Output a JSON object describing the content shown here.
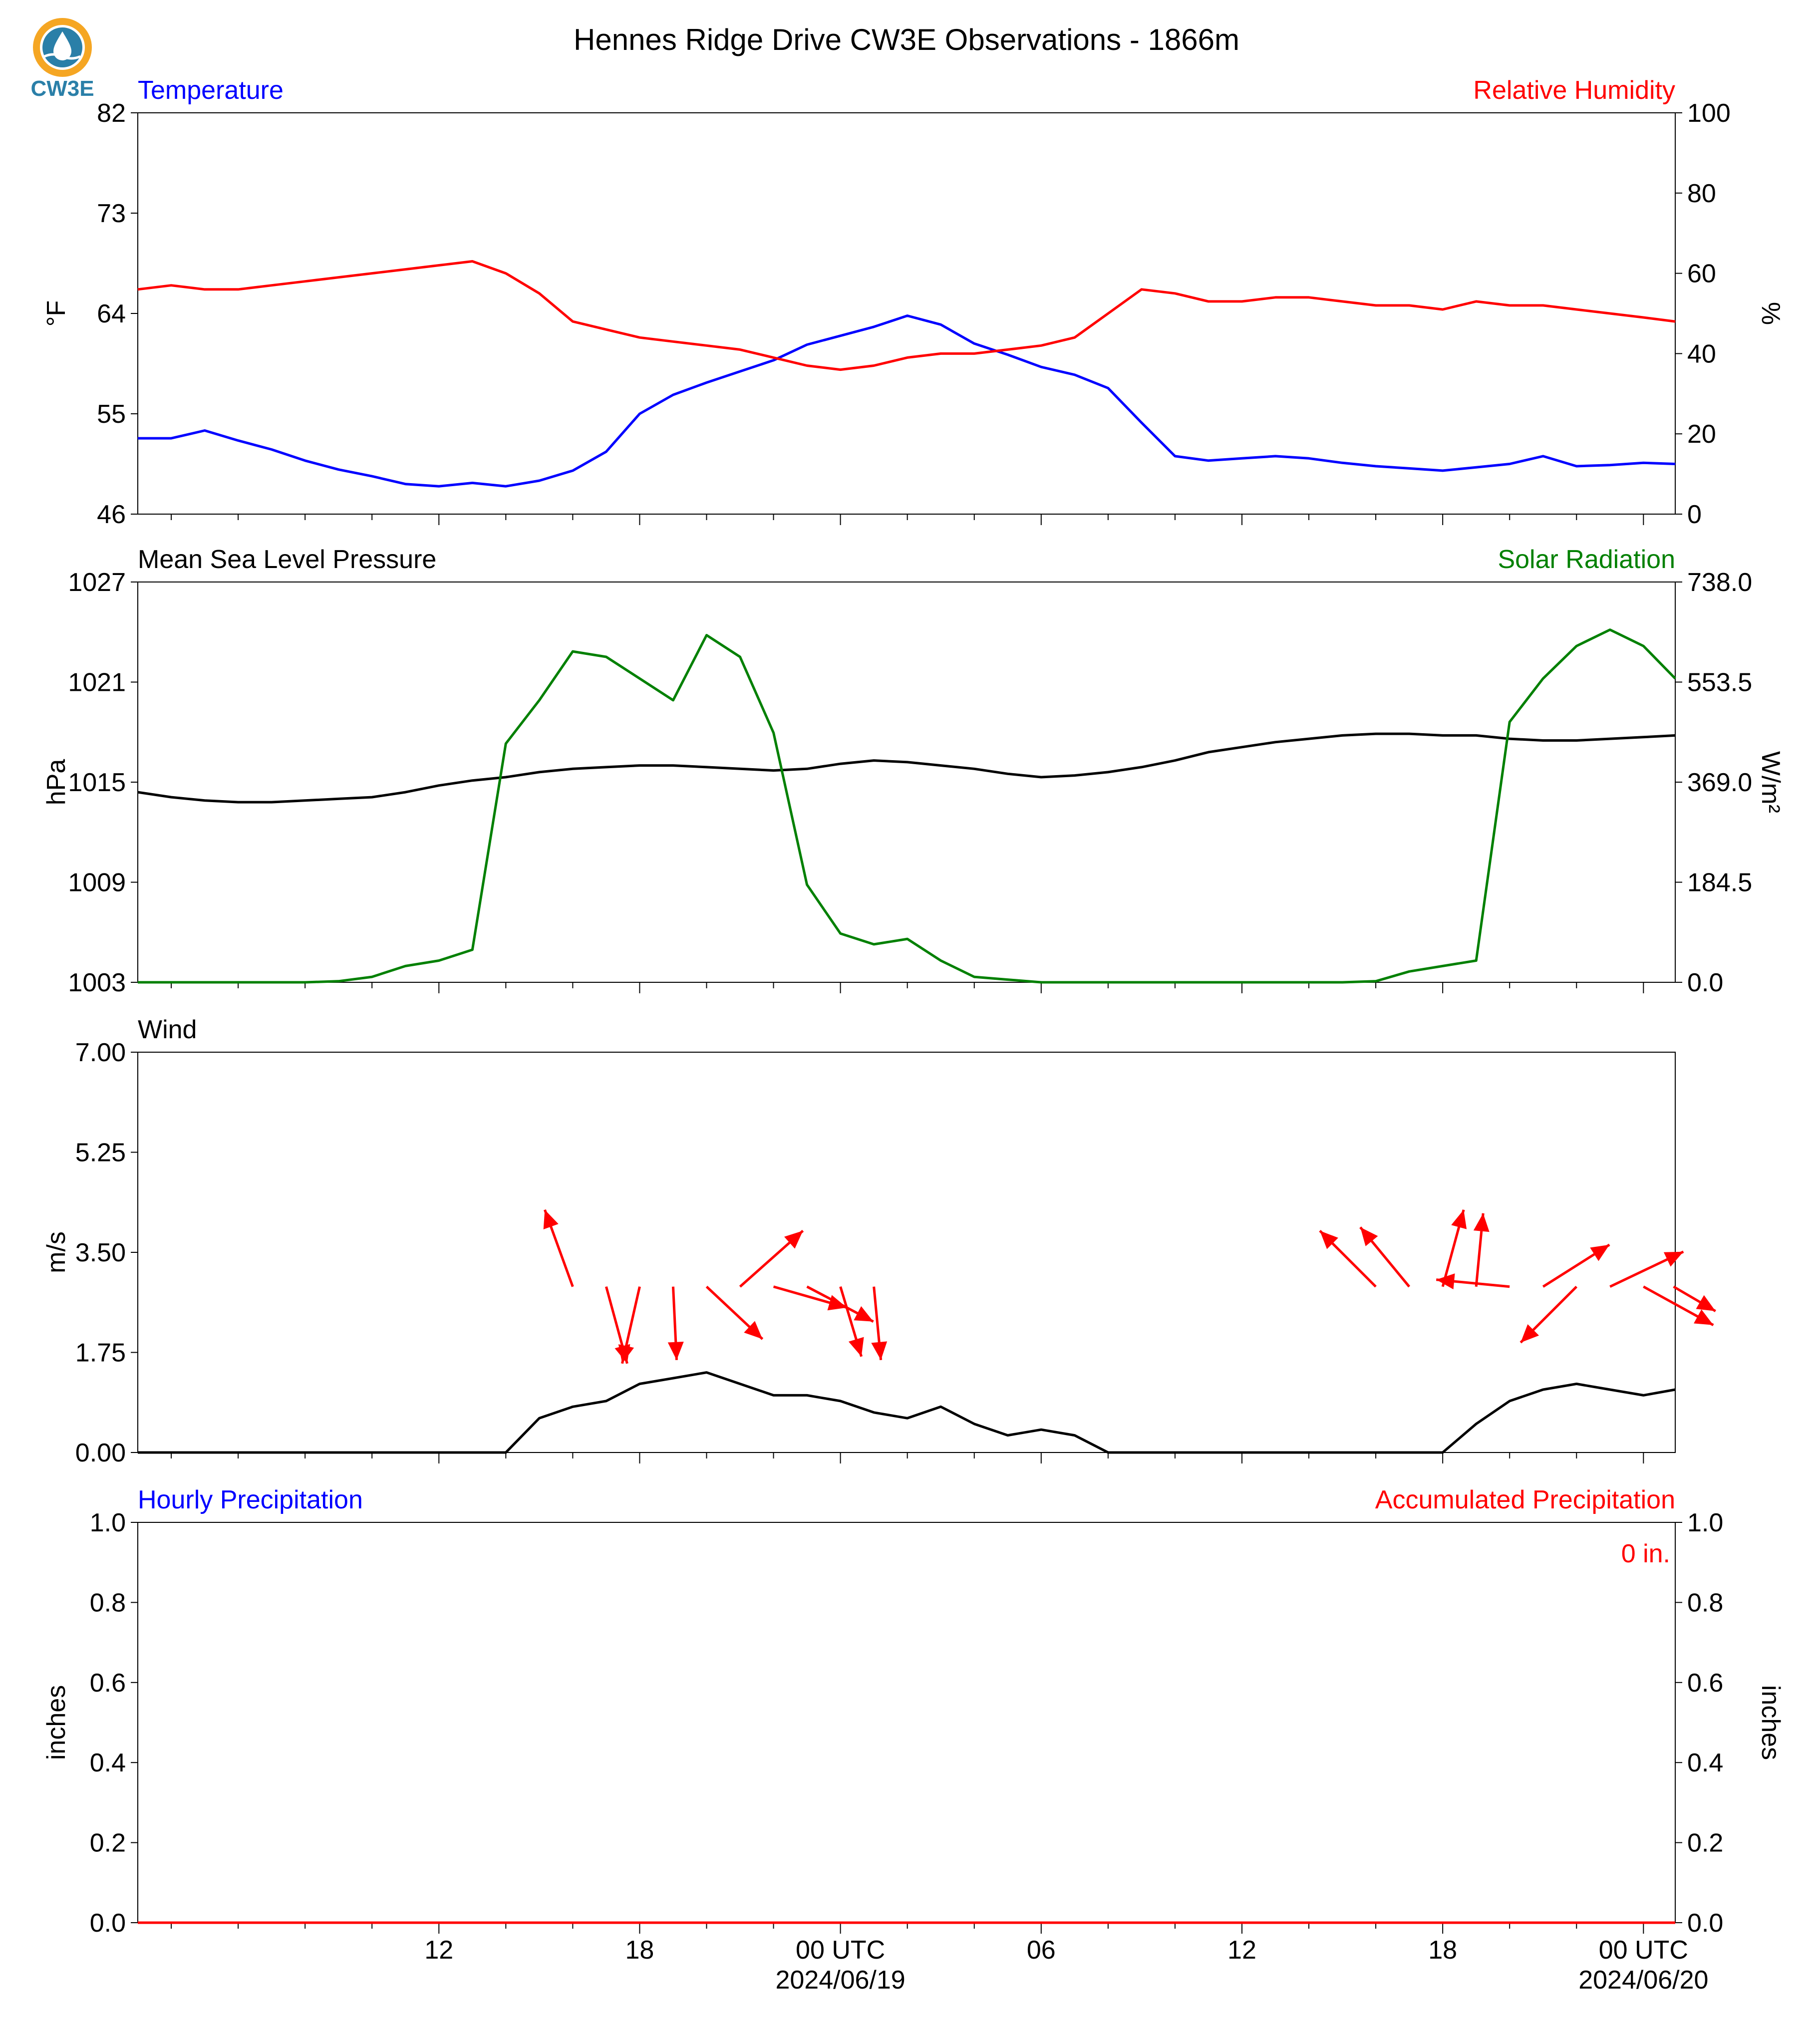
{
  "header": {
    "title": "Hennes Ridge Drive CW3E Observations - 1866m",
    "logo_text": "CW3E"
  },
  "chart_data": [
    {
      "type": "line",
      "left_label": "Temperature",
      "right_label": "Relative Humidity",
      "ylabel_left": "°F",
      "ylabel_right": "%",
      "ylim_left": [
        46,
        82
      ],
      "ylim_right": [
        0,
        100
      ],
      "yticks_left": [
        "46",
        "55",
        "64",
        "73",
        "82"
      ],
      "yticks_right": [
        "0",
        "20",
        "40",
        "60",
        "80",
        "100"
      ],
      "x_hours": [
        3.0,
        4.0,
        5.0,
        6.0,
        7.0,
        8.0,
        9.0,
        10.0,
        11.0,
        12.0,
        13.0,
        14.0,
        15.0,
        16.0,
        17.0,
        18.0,
        19.0,
        20.0,
        21.0,
        22.0,
        23.0,
        24.0,
        25.0,
        26.0,
        27.0,
        28.0,
        29.0,
        30.0,
        31.0,
        32.0,
        33.0,
        34.0,
        35.0,
        36.0,
        37.0,
        38.0,
        39.0,
        40.0,
        41.0,
        42.0,
        43.0,
        44.0,
        45.0,
        46.0,
        47.0,
        48.0,
        48.95
      ],
      "series": [
        {
          "name": "Temperature",
          "axis": "left",
          "color": "#0000ff",
          "values": [
            52.8,
            52.8,
            53.5,
            52.6,
            51.8,
            50.8,
            50.0,
            49.4,
            48.7,
            48.5,
            48.8,
            48.5,
            49.0,
            49.9,
            51.6,
            55.0,
            56.7,
            57.8,
            58.8,
            59.8,
            61.2,
            62.0,
            62.8,
            63.8,
            63.0,
            61.3,
            60.3,
            59.2,
            58.5,
            57.3,
            54.2,
            51.2,
            50.8,
            51.0,
            51.2,
            51.0,
            50.6,
            50.3,
            50.1,
            49.9,
            50.2,
            50.5,
            51.2,
            50.3,
            50.4,
            50.6,
            50.5
          ]
        },
        {
          "name": "Relative Humidity",
          "axis": "right",
          "color": "#ff0000",
          "values": [
            56,
            57,
            56,
            56,
            57,
            58,
            59,
            60,
            61,
            62,
            63,
            60,
            55,
            48,
            46,
            44,
            43,
            42,
            41,
            39,
            37,
            36,
            37,
            39,
            40,
            40,
            41,
            42,
            44,
            50,
            56,
            55,
            53,
            53,
            54,
            54,
            53,
            52,
            52,
            51,
            53,
            52,
            52,
            51,
            50,
            49,
            48
          ]
        }
      ]
    },
    {
      "type": "line",
      "left_label": "Mean Sea Level Pressure",
      "right_label": "Solar Radiation",
      "ylabel_left": "hPa",
      "ylabel_right": "W/m²",
      "ylim_left": [
        1003,
        1027
      ],
      "ylim_right": [
        0,
        738
      ],
      "yticks_left": [
        "1003",
        "1009",
        "1015",
        "1021",
        "1027"
      ],
      "yticks_right": [
        "0.0",
        "184.5",
        "369.0",
        "553.5",
        "738.0"
      ],
      "x_hours": [
        3.0,
        4.0,
        5.0,
        6.0,
        7.0,
        8.0,
        9.0,
        10.0,
        11.0,
        12.0,
        13.0,
        14.0,
        15.0,
        16.0,
        17.0,
        18.0,
        19.0,
        20.0,
        21.0,
        22.0,
        23.0,
        24.0,
        25.0,
        26.0,
        27.0,
        28.0,
        29.0,
        30.0,
        31.0,
        32.0,
        33.0,
        34.0,
        35.0,
        36.0,
        37.0,
        38.0,
        39.0,
        40.0,
        41.0,
        42.0,
        43.0,
        44.0,
        45.0,
        46.0,
        47.0,
        48.0,
        48.95
      ],
      "series": [
        {
          "name": "Mean Sea Level Pressure",
          "axis": "left",
          "color": "#000000",
          "values": [
            1014.4,
            1014.1,
            1013.9,
            1013.8,
            1013.8,
            1013.9,
            1014.0,
            1014.1,
            1014.4,
            1014.8,
            1015.1,
            1015.3,
            1015.6,
            1015.8,
            1015.9,
            1016.0,
            1016.0,
            1015.9,
            1015.8,
            1015.7,
            1015.8,
            1016.1,
            1016.3,
            1016.2,
            1016.0,
            1015.8,
            1015.5,
            1015.3,
            1015.4,
            1015.6,
            1015.9,
            1016.3,
            1016.8,
            1017.1,
            1017.4,
            1017.6,
            1017.8,
            1017.9,
            1017.9,
            1017.8,
            1017.8,
            1017.6,
            1017.5,
            1017.5,
            1017.6,
            1017.7,
            1017.8
          ]
        },
        {
          "name": "Solar Radiation",
          "axis": "right",
          "color": "#008000",
          "values": [
            0,
            0,
            0,
            0,
            0,
            0,
            2,
            10,
            30,
            40,
            60,
            440,
            520,
            610,
            600,
            560,
            520,
            640,
            600,
            460,
            180,
            90,
            70,
            80,
            40,
            10,
            5,
            0,
            0,
            0,
            0,
            0,
            0,
            0,
            0,
            0,
            0,
            2,
            20,
            30,
            40,
            480,
            560,
            620,
            650,
            620,
            560
          ]
        }
      ]
    },
    {
      "type": "line",
      "left_label": "Wind",
      "ylabel_left": "m/s",
      "ylim_left": [
        0,
        7
      ],
      "yticks_left": [
        "0.00",
        "1.75",
        "3.50",
        "5.25",
        "7.00"
      ],
      "x_hours": [
        3.0,
        4.0,
        5.0,
        6.0,
        7.0,
        8.0,
        9.0,
        10.0,
        11.0,
        12.0,
        13.0,
        14.0,
        15.0,
        16.0,
        17.0,
        18.0,
        19.0,
        20.0,
        21.0,
        22.0,
        23.0,
        24.0,
        25.0,
        26.0,
        27.0,
        28.0,
        29.0,
        30.0,
        31.0,
        32.0,
        33.0,
        34.0,
        35.0,
        36.0,
        37.0,
        38.0,
        39.0,
        40.0,
        41.0,
        42.0,
        43.0,
        44.0,
        45.0,
        46.0,
        47.0,
        48.0,
        48.95
      ],
      "series": [
        {
          "name": "Wind speed",
          "axis": "left",
          "color": "#000000",
          "values": [
            0,
            0,
            0,
            0,
            0,
            0,
            0,
            0,
            0,
            0,
            0,
            0,
            0.6,
            0.8,
            0.9,
            1.2,
            1.3,
            1.4,
            1.2,
            1.0,
            1.0,
            0.9,
            0.7,
            0.6,
            0.8,
            0.5,
            0.3,
            0.4,
            0.3,
            0,
            0,
            0,
            0,
            0,
            0,
            0,
            0,
            0,
            0,
            0,
            0.5,
            0.9,
            1.1,
            1.2,
            1.1,
            1.0,
            1.1
          ]
        }
      ],
      "arrows": [
        {
          "hour": 16,
          "u": -0.8,
          "v": 2.2
        },
        {
          "hour": 17.0,
          "u": 0.6,
          "v": -2.2
        },
        {
          "hour": 18.0,
          "u": -0.5,
          "v": -2.2
        },
        {
          "hour": 19.0,
          "u": 0.1,
          "v": -2.1
        },
        {
          "hour": 20.0,
          "u": 1.6,
          "v": -1.5
        },
        {
          "hour": 21.0,
          "u": 1.8,
          "v": 1.6
        },
        {
          "hour": 22.0,
          "u": 2.1,
          "v": -0.6
        },
        {
          "hour": 23.0,
          "u": 1.9,
          "v": -1.0
        },
        {
          "hour": 24.0,
          "u": 0.6,
          "v": -2.0
        },
        {
          "hour": 25.0,
          "u": 0.2,
          "v": -2.1
        },
        {
          "hour": 40.0,
          "u": -1.6,
          "v": 1.6
        },
        {
          "hour": 41.0,
          "u": -1.4,
          "v": 1.7
        },
        {
          "hour": 42.0,
          "u": 0.6,
          "v": 2.2
        },
        {
          "hour": 43.0,
          "u": 0.2,
          "v": 2.1
        },
        {
          "hour": 44.0,
          "u": -2.1,
          "v": 0.2
        },
        {
          "hour": 45.0,
          "u": 1.9,
          "v": 1.2
        },
        {
          "hour": 46.0,
          "u": -1.6,
          "v": -1.6
        },
        {
          "hour": 47.0,
          "u": 2.1,
          "v": 1.0
        },
        {
          "hour": 48.0,
          "u": 2.0,
          "v": -1.1
        },
        {
          "hour": 48.9,
          "u": 1.2,
          "v": -0.7
        }
      ]
    },
    {
      "type": "line",
      "left_label": "Hourly Precipitation",
      "right_label": "Accumulated Precipitation",
      "ylabel_left": "inches",
      "ylabel_right": "inches",
      "ylim_left": [
        0,
        1
      ],
      "ylim_right": [
        0,
        1
      ],
      "yticks_left": [
        "0.0",
        "0.2",
        "0.4",
        "0.6",
        "0.8",
        "1.0"
      ],
      "yticks_right": [
        "0.0",
        "0.2",
        "0.4",
        "0.6",
        "0.8",
        "1.0"
      ],
      "annotation": "0 in.",
      "x_hours": [
        3.0,
        48.95
      ],
      "series": [
        {
          "name": "Hourly Precipitation",
          "axis": "left",
          "color": "#0000ff",
          "values": [
            0,
            0
          ]
        },
        {
          "name": "Accumulated Precipitation",
          "axis": "right",
          "color": "#ff0000",
          "values": [
            0,
            0
          ]
        }
      ]
    }
  ],
  "x_axis": {
    "start_hour": 3.0,
    "end_hour": 48.95,
    "major_ticks": [
      {
        "hour": 12,
        "label": "12",
        "date": ""
      },
      {
        "hour": 18,
        "label": "18",
        "date": ""
      },
      {
        "hour": 24,
        "label": "00 UTC",
        "date": "2024/06/19"
      },
      {
        "hour": 30,
        "label": "06",
        "date": ""
      },
      {
        "hour": 36,
        "label": "12",
        "date": ""
      },
      {
        "hour": 42,
        "label": "18",
        "date": ""
      },
      {
        "hour": 48,
        "label": "00 UTC",
        "date": "2024/06/20"
      }
    ],
    "minor_step_hours": 2
  },
  "colors": {
    "temperature": "#0000ff",
    "humidity": "#ff0000",
    "solar": "#008000",
    "pressure": "#000000",
    "wind_arrow": "#ff0000",
    "logo_ring": "#f5a623",
    "logo_drop": "#2a7fa8"
  }
}
